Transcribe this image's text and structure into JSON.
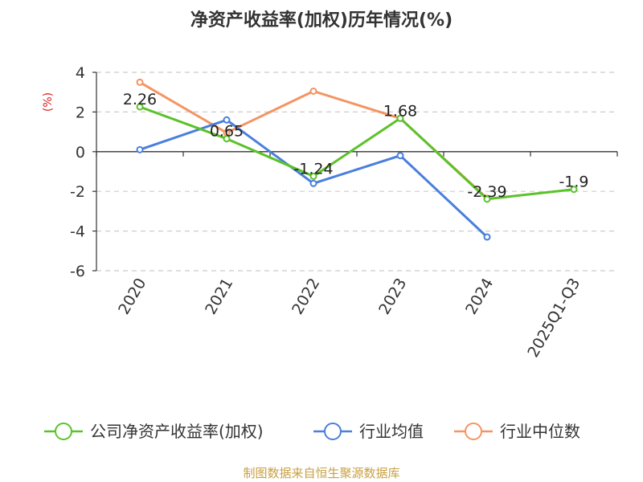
{
  "chart_data": {
    "type": "line",
    "title": "净资产收益率(加权)历年情况(%)",
    "ylabel": "(%)",
    "categories": [
      "2020",
      "2021",
      "2022",
      "2023",
      "2024",
      "2025Q1-Q3"
    ],
    "ylim": [
      -6,
      4
    ],
    "yticks": [
      4,
      2,
      0,
      -2,
      -4,
      -6
    ],
    "grid": true,
    "legend_position": "bottom",
    "series": [
      {
        "name": "公司净资产收益率(加权)",
        "color": "#5bc22a",
        "values": [
          2.26,
          0.65,
          -1.24,
          1.68,
          -2.39,
          -1.9
        ],
        "labels": [
          "2.26",
          "0.65",
          "-1.24",
          "1.68",
          "-2.39",
          "-1.9"
        ]
      },
      {
        "name": "行业均值",
        "color": "#4a7fdc",
        "values": [
          0.1,
          1.6,
          -1.6,
          -0.2,
          -4.3,
          null
        ]
      },
      {
        "name": "行业中位数",
        "color": "#f49462",
        "values": [
          3.5,
          0.95,
          3.05,
          1.68,
          -2.35,
          null
        ]
      }
    ]
  },
  "source_text": "制图数据来自恒生聚源数据库"
}
